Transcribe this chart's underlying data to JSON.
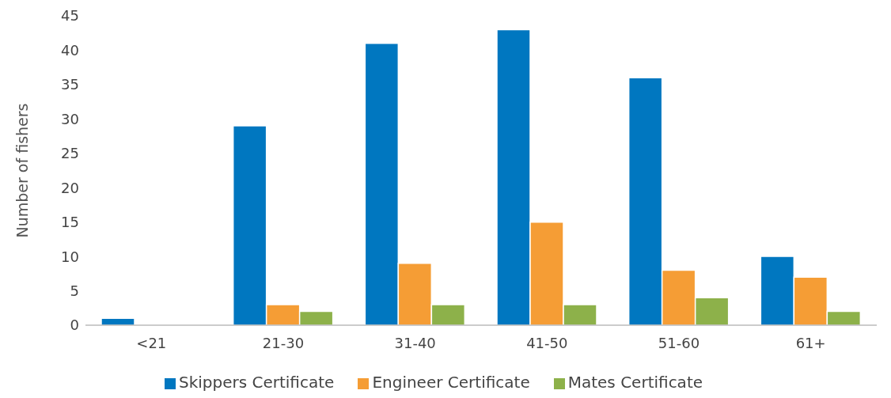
{
  "chart_data": {
    "type": "bar",
    "ylabel": "Number of fishers",
    "categories": [
      "<21",
      "21-30",
      "31-40",
      "41-50",
      "51-60",
      "61+"
    ],
    "series": [
      {
        "name": "Skippers Certificate",
        "color": "#0077c0",
        "values": [
          1,
          29,
          41,
          43,
          36,
          10
        ]
      },
      {
        "name": "Engineer Certificate",
        "color": "#f59d35",
        "values": [
          0,
          3,
          9,
          15,
          8,
          7
        ]
      },
      {
        "name": "Mates Certificate",
        "color": "#8db14a",
        "values": [
          0,
          2,
          3,
          3,
          4,
          2
        ]
      }
    ],
    "ylim": [
      0,
      45
    ],
    "yticks": [
      0,
      5,
      10,
      15,
      20,
      25,
      30,
      35,
      40,
      45
    ],
    "grid": false,
    "legend": "bottom"
  }
}
